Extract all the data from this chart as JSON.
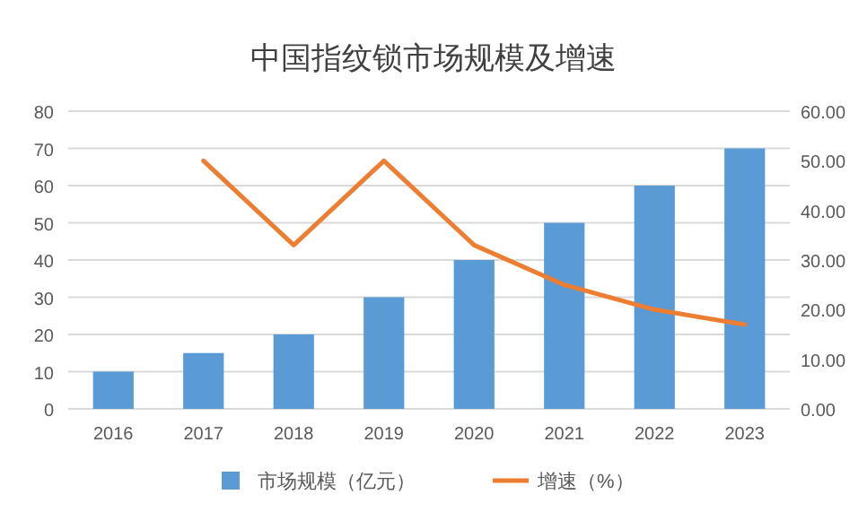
{
  "chart_data": {
    "type": "bar",
    "title": "中国指纹锁市场规模及增速",
    "categories": [
      "2016",
      "2017",
      "2018",
      "2019",
      "2020",
      "2021",
      "2022",
      "2023"
    ],
    "series": [
      {
        "name": "市场规模（亿元）",
        "color": "#5b9bd5",
        "values": [
          10,
          15,
          20,
          30,
          40,
          50,
          60,
          70
        ]
      },
      {
        "name": "增速（%）",
        "type": "line",
        "axis": "y2",
        "color": "#ed7d31",
        "values": [
          null,
          50,
          33,
          50,
          33,
          25,
          20,
          17
        ]
      }
    ],
    "ylim": [
      0,
      80
    ],
    "yticks": [
      0,
      10,
      20,
      30,
      40,
      50,
      60,
      70,
      80
    ],
    "y2lim": [
      0,
      60
    ],
    "y2ticks": [
      {
        "value": 0,
        "label": "0.00"
      },
      {
        "value": 10,
        "label": "10.00"
      },
      {
        "value": 20,
        "label": "20.00"
      },
      {
        "value": 30,
        "label": "30.00"
      },
      {
        "value": 40,
        "label": "40.00"
      },
      {
        "value": 50,
        "label": "50.00"
      },
      {
        "value": 60,
        "label": "60.00"
      }
    ],
    "grid": "y",
    "legend": "bottom"
  }
}
